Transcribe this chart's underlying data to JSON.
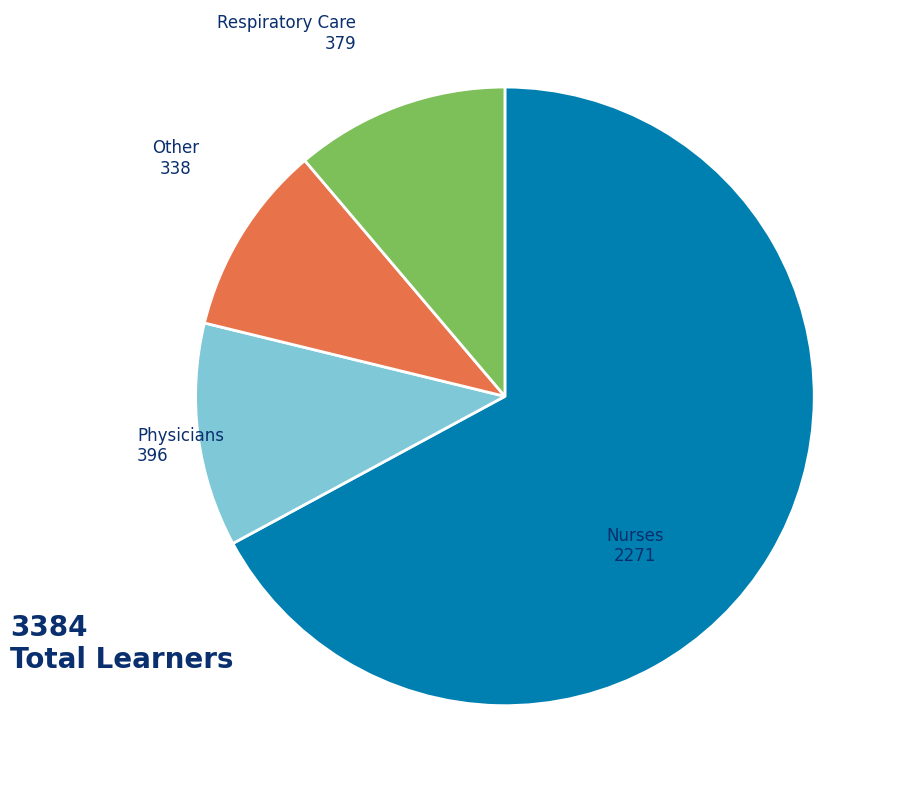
{
  "slices": [
    {
      "label": "Nurses",
      "value": 2271,
      "color": "#0080b0"
    },
    {
      "label": "Physicians",
      "value": 396,
      "color": "#7fc8d8"
    },
    {
      "label": "Other",
      "value": 338,
      "color": "#e8724a"
    },
    {
      "label": "Respiratory Care",
      "value": 379,
      "color": "#7dc05a"
    }
  ],
  "total": 3384,
  "total_label": "Total Learners",
  "background_color": "#ffffff",
  "text_color": "#0a2f6e"
}
